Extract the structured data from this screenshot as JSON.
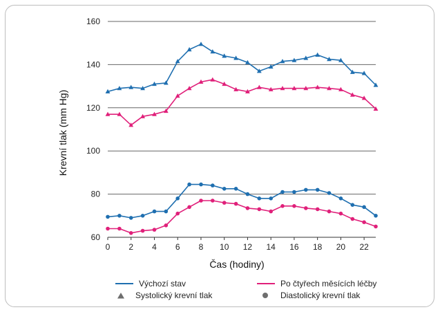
{
  "chart_data": {
    "type": "line",
    "xlabel": "Čas (hodiny)",
    "ylabel": "Krevní tlak (mm Hg)",
    "xlim": [
      0,
      23
    ],
    "ylim": [
      60,
      160
    ],
    "x_ticks": [
      0,
      2,
      4,
      6,
      8,
      10,
      12,
      14,
      16,
      18,
      20,
      22
    ],
    "y_ticks": [
      60,
      80,
      100,
      120,
      140,
      160
    ],
    "grid": "horizontal",
    "legend_placement": "bottom",
    "x": [
      0,
      1,
      2,
      3,
      4,
      5,
      6,
      7,
      8,
      9,
      10,
      11,
      12,
      13,
      14,
      15,
      16,
      17,
      18,
      19,
      20,
      21,
      22,
      23
    ],
    "series": [
      {
        "name": "Výchozí stav",
        "measure": "Systolický krevní tlak",
        "color": "#1f6fb0",
        "marker": "triangle",
        "values": [
          127.5,
          129,
          129.5,
          129,
          131,
          131.5,
          141.5,
          147,
          149.5,
          146,
          144,
          143,
          141,
          137,
          139,
          141.5,
          142,
          143,
          144.5,
          142.5,
          142,
          136.5,
          136,
          130.5
        ]
      },
      {
        "name": "Po čtyřech měsících léčby",
        "measure": "Systolický krevní tlak",
        "color": "#e0207a",
        "marker": "triangle",
        "values": [
          117,
          117,
          112,
          116,
          117,
          118.5,
          125.5,
          129,
          132,
          133,
          131,
          128.5,
          127.5,
          129.5,
          128.5,
          129,
          129,
          129,
          129.5,
          129,
          128.5,
          126,
          124.5,
          119.5
        ]
      },
      {
        "name": "Výchozí stav",
        "measure": "Diastolický krevní tlak",
        "color": "#1f6fb0",
        "marker": "circle",
        "values": [
          69.5,
          70,
          69,
          70,
          72,
          72,
          78,
          84.5,
          84.5,
          84,
          82.5,
          82.5,
          80,
          78,
          78,
          81,
          81,
          82,
          82,
          80.5,
          78,
          75,
          74,
          70
        ]
      },
      {
        "name": "Po čtyřech měsících léčby",
        "measure": "Diastolický krevní tlak",
        "color": "#e0207a",
        "marker": "circle",
        "values": [
          64,
          64,
          62,
          63,
          63.5,
          65.5,
          71,
          74,
          77,
          77,
          76,
          75.5,
          73.5,
          73,
          72,
          74.5,
          74.5,
          73.5,
          73,
          72,
          71,
          68.5,
          67,
          65
        ]
      }
    ],
    "legend": {
      "baseline_label": "Výchozí stav",
      "treatment_label": "Po čtyřech měsících léčby",
      "systolic_label": "Systolický krevní tlak",
      "diastolic_label": "Diastolický krevní tlak"
    }
  },
  "colors": {
    "baseline": "#1f6fb0",
    "treatment": "#e0207a",
    "marker_gray": "#6e6e6e",
    "grid": "#666666",
    "frame_border": "#bdbdbd"
  }
}
